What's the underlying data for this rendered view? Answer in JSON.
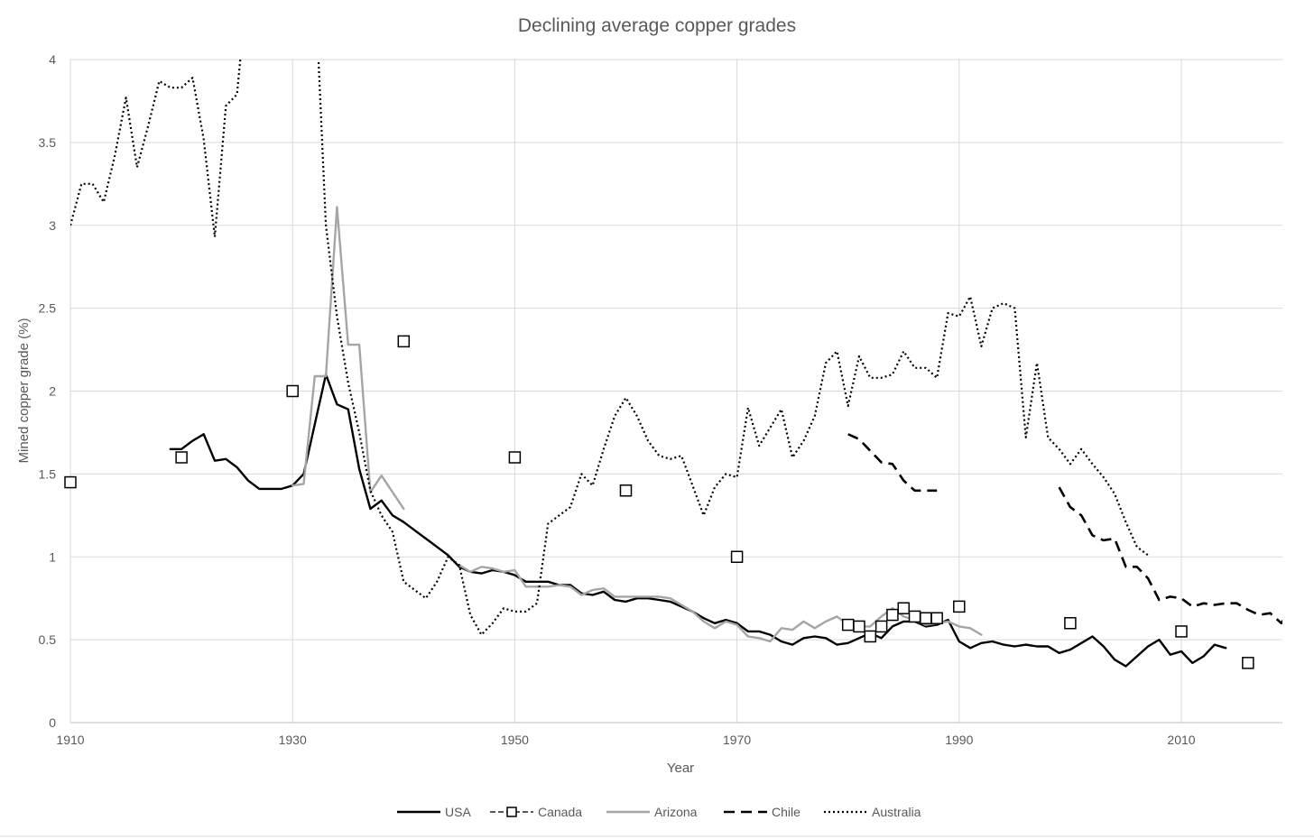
{
  "chart_data": {
    "type": "line",
    "title": "Declining average copper grades",
    "xlabel": "Year",
    "ylabel": "Mined copper grade (%)",
    "xlim": [
      1910,
      2020
    ],
    "ylim": [
      0,
      4
    ],
    "x_ticks": [
      "1910",
      "1930",
      "1950",
      "1970",
      "1990",
      "2010"
    ],
    "y_ticks": [
      "0",
      "0.5",
      "1",
      "1.5",
      "2",
      "2.5",
      "3",
      "3.5",
      "4"
    ],
    "grid": "on",
    "legend_position": "bottom",
    "series": [
      {
        "name": "USA",
        "style": "solid",
        "color": "#000000",
        "points": [
          [
            1919,
            1.65
          ],
          [
            1920,
            1.65
          ],
          [
            1921,
            1.7
          ],
          [
            1922,
            1.74
          ],
          [
            1923,
            1.58
          ],
          [
            1924,
            1.59
          ],
          [
            1925,
            1.54
          ],
          [
            1926,
            1.46
          ],
          [
            1927,
            1.41
          ],
          [
            1928,
            1.41
          ],
          [
            1929,
            1.41
          ],
          [
            1930,
            1.43
          ],
          [
            1931,
            1.5
          ],
          [
            1932,
            1.8
          ],
          [
            1933,
            2.1
          ],
          [
            1934,
            1.92
          ],
          [
            1935,
            1.89
          ],
          [
            1936,
            1.53
          ],
          [
            1937,
            1.29
          ],
          [
            1938,
            1.34
          ],
          [
            1939,
            1.25
          ],
          [
            1940,
            1.21
          ],
          [
            1941,
            1.16
          ],
          [
            1942,
            1.11
          ],
          [
            1943,
            1.06
          ],
          [
            1944,
            1.01
          ],
          [
            1945,
            0.94
          ],
          [
            1946,
            0.91
          ],
          [
            1947,
            0.9
          ],
          [
            1948,
            0.92
          ],
          [
            1949,
            0.91
          ],
          [
            1950,
            0.89
          ],
          [
            1951,
            0.85
          ],
          [
            1952,
            0.85
          ],
          [
            1953,
            0.85
          ],
          [
            1954,
            0.83
          ],
          [
            1955,
            0.83
          ],
          [
            1956,
            0.78
          ],
          [
            1957,
            0.77
          ],
          [
            1958,
            0.79
          ],
          [
            1959,
            0.74
          ],
          [
            1960,
            0.73
          ],
          [
            1961,
            0.75
          ],
          [
            1962,
            0.75
          ],
          [
            1963,
            0.74
          ],
          [
            1964,
            0.73
          ],
          [
            1965,
            0.7
          ],
          [
            1966,
            0.67
          ],
          [
            1967,
            0.63
          ],
          [
            1968,
            0.6
          ],
          [
            1969,
            0.62
          ],
          [
            1970,
            0.6
          ],
          [
            1971,
            0.55
          ],
          [
            1972,
            0.55
          ],
          [
            1973,
            0.53
          ],
          [
            1974,
            0.49
          ],
          [
            1975,
            0.47
          ],
          [
            1976,
            0.51
          ],
          [
            1977,
            0.52
          ],
          [
            1978,
            0.51
          ],
          [
            1979,
            0.47
          ],
          [
            1980,
            0.48
          ],
          [
            1981,
            0.51
          ],
          [
            1982,
            0.54
          ],
          [
            1983,
            0.51
          ],
          [
            1984,
            0.58
          ],
          [
            1985,
            0.61
          ],
          [
            1986,
            0.61
          ],
          [
            1987,
            0.58
          ],
          [
            1988,
            0.59
          ],
          [
            1989,
            0.62
          ],
          [
            1990,
            0.49
          ],
          [
            1991,
            0.45
          ],
          [
            1992,
            0.48
          ],
          [
            1993,
            0.49
          ],
          [
            1994,
            0.47
          ],
          [
            1995,
            0.46
          ],
          [
            1996,
            0.47
          ],
          [
            1997,
            0.46
          ],
          [
            1998,
            0.46
          ],
          [
            1999,
            0.42
          ],
          [
            2000,
            0.44
          ],
          [
            2001,
            0.48
          ],
          [
            2002,
            0.52
          ],
          [
            2003,
            0.46
          ],
          [
            2004,
            0.38
          ],
          [
            2005,
            0.34
          ],
          [
            2006,
            0.4
          ],
          [
            2007,
            0.46
          ],
          [
            2008,
            0.5
          ],
          [
            2009,
            0.41
          ],
          [
            2010,
            0.43
          ],
          [
            2011,
            0.36
          ],
          [
            2012,
            0.4
          ],
          [
            2013,
            0.47
          ],
          [
            2014,
            0.45
          ]
        ]
      },
      {
        "name": "Canada",
        "style": "markers",
        "color": "#000000",
        "points": [
          [
            1910,
            1.45
          ],
          [
            1920,
            1.6
          ],
          [
            1930,
            2.0
          ],
          [
            1940,
            2.3
          ],
          [
            1950,
            1.6
          ],
          [
            1960,
            1.4
          ],
          [
            1970,
            1.0
          ],
          [
            1980,
            0.59
          ],
          [
            1981,
            0.58
          ],
          [
            1982,
            0.52
          ],
          [
            1983,
            0.58
          ],
          [
            1984,
            0.65
          ],
          [
            1985,
            0.69
          ],
          [
            1986,
            0.64
          ],
          [
            1987,
            0.63
          ],
          [
            1988,
            0.63
          ],
          [
            1990,
            0.7
          ],
          [
            2000,
            0.6
          ],
          [
            2010,
            0.55
          ],
          [
            2016,
            0.36
          ]
        ]
      },
      {
        "name": "Arizona",
        "style": "solid",
        "color": "#a5a5a5",
        "points": [
          [
            1930,
            1.43
          ],
          [
            1931,
            1.44
          ],
          [
            1932,
            2.09
          ],
          [
            1933,
            2.09
          ],
          [
            1934,
            3.11
          ],
          [
            1935,
            2.28
          ],
          [
            1936,
            2.28
          ],
          [
            1937,
            1.39
          ],
          [
            1938,
            1.49
          ],
          [
            1939,
            1.39
          ],
          [
            1940,
            1.29
          ],
          [
            1945,
            0.95
          ],
          [
            1946,
            0.91
          ],
          [
            1947,
            0.94
          ],
          [
            1948,
            0.93
          ],
          [
            1949,
            0.91
          ],
          [
            1950,
            0.92
          ],
          [
            1951,
            0.82
          ],
          [
            1952,
            0.82
          ],
          [
            1953,
            0.82
          ],
          [
            1954,
            0.83
          ],
          [
            1955,
            0.82
          ],
          [
            1956,
            0.77
          ],
          [
            1957,
            0.8
          ],
          [
            1958,
            0.81
          ],
          [
            1959,
            0.76
          ],
          [
            1960,
            0.76
          ],
          [
            1961,
            0.76
          ],
          [
            1962,
            0.76
          ],
          [
            1963,
            0.76
          ],
          [
            1964,
            0.75
          ],
          [
            1965,
            0.71
          ],
          [
            1966,
            0.67
          ],
          [
            1967,
            0.61
          ],
          [
            1968,
            0.57
          ],
          [
            1969,
            0.61
          ],
          [
            1970,
            0.59
          ],
          [
            1971,
            0.52
          ],
          [
            1972,
            0.51
          ],
          [
            1973,
            0.49
          ],
          [
            1974,
            0.57
          ],
          [
            1975,
            0.56
          ],
          [
            1976,
            0.61
          ],
          [
            1977,
            0.57
          ],
          [
            1978,
            0.61
          ],
          [
            1979,
            0.64
          ],
          [
            1980,
            0.59
          ],
          [
            1981,
            0.58
          ],
          [
            1982,
            0.58
          ],
          [
            1983,
            0.64
          ],
          [
            1984,
            0.69
          ],
          [
            1985,
            0.64
          ],
          [
            1986,
            0.62
          ],
          [
            1987,
            0.59
          ],
          [
            1988,
            0.6
          ],
          [
            1989,
            0.61
          ],
          [
            1990,
            0.58
          ],
          [
            1991,
            0.57
          ],
          [
            1992,
            0.53
          ]
        ]
      },
      {
        "name": "Chile",
        "style": "dashed",
        "color": "#000000",
        "points": [
          [
            1980,
            1.74
          ],
          [
            1981,
            1.71
          ],
          [
            1982,
            1.64
          ],
          [
            1983,
            1.57
          ],
          [
            1984,
            1.56
          ],
          [
            1985,
            1.46
          ],
          [
            1986,
            1.4
          ],
          [
            1987,
            1.4
          ],
          [
            1988,
            1.4
          ],
          [
            1999,
            1.42
          ],
          [
            2000,
            1.3
          ],
          [
            2001,
            1.25
          ],
          [
            2002,
            1.13
          ],
          [
            2003,
            1.1
          ],
          [
            2004,
            1.11
          ],
          [
            2005,
            0.94
          ],
          [
            2006,
            0.94
          ],
          [
            2007,
            0.87
          ],
          [
            2008,
            0.74
          ],
          [
            2009,
            0.76
          ],
          [
            2010,
            0.75
          ],
          [
            2011,
            0.7
          ],
          [
            2012,
            0.72
          ],
          [
            2013,
            0.71
          ],
          [
            2014,
            0.72
          ],
          [
            2015,
            0.72
          ],
          [
            2016,
            0.68
          ],
          [
            2017,
            0.65
          ],
          [
            2018,
            0.66
          ],
          [
            2019,
            0.6
          ],
          [
            2020,
            0.7
          ]
        ]
      },
      {
        "name": "Australia",
        "style": "dotted",
        "color": "#000000",
        "points": [
          [
            1910,
            3.0
          ],
          [
            1911,
            3.25
          ],
          [
            1912,
            3.25
          ],
          [
            1913,
            3.14
          ],
          [
            1914,
            3.42
          ],
          [
            1915,
            3.77
          ],
          [
            1916,
            3.35
          ],
          [
            1917,
            3.6
          ],
          [
            1918,
            3.87
          ],
          [
            1919,
            3.83
          ],
          [
            1920,
            3.83
          ],
          [
            1921,
            3.89
          ],
          [
            1922,
            3.52
          ],
          [
            1923,
            2.93
          ],
          [
            1924,
            3.72
          ],
          [
            1925,
            3.79
          ],
          [
            1926,
            4.5
          ],
          [
            1932,
            4.5
          ],
          [
            1933,
            3.0
          ],
          [
            1934,
            2.45
          ],
          [
            1935,
            2.05
          ],
          [
            1936,
            1.75
          ],
          [
            1937,
            1.4
          ],
          [
            1938,
            1.25
          ],
          [
            1939,
            1.15
          ],
          [
            1940,
            0.85
          ],
          [
            1941,
            0.8
          ],
          [
            1942,
            0.75
          ],
          [
            1943,
            0.85
          ],
          [
            1944,
            1.0
          ],
          [
            1945,
            0.95
          ],
          [
            1946,
            0.65
          ],
          [
            1947,
            0.53
          ],
          [
            1948,
            0.6
          ],
          [
            1949,
            0.69
          ],
          [
            1950,
            0.67
          ],
          [
            1951,
            0.67
          ],
          [
            1952,
            0.72
          ],
          [
            1953,
            1.2
          ],
          [
            1954,
            1.25
          ],
          [
            1955,
            1.3
          ],
          [
            1956,
            1.5
          ],
          [
            1957,
            1.43
          ],
          [
            1958,
            1.65
          ],
          [
            1959,
            1.85
          ],
          [
            1960,
            1.96
          ],
          [
            1961,
            1.85
          ],
          [
            1962,
            1.7
          ],
          [
            1963,
            1.61
          ],
          [
            1964,
            1.59
          ],
          [
            1965,
            1.61
          ],
          [
            1966,
            1.43
          ],
          [
            1967,
            1.25
          ],
          [
            1968,
            1.42
          ],
          [
            1969,
            1.5
          ],
          [
            1970,
            1.48
          ],
          [
            1971,
            1.9
          ],
          [
            1972,
            1.67
          ],
          [
            1973,
            1.78
          ],
          [
            1974,
            1.89
          ],
          [
            1975,
            1.6
          ],
          [
            1976,
            1.7
          ],
          [
            1977,
            1.85
          ],
          [
            1978,
            2.17
          ],
          [
            1979,
            2.24
          ],
          [
            1980,
            1.91
          ],
          [
            1981,
            2.21
          ],
          [
            1982,
            2.08
          ],
          [
            1983,
            2.08
          ],
          [
            1984,
            2.1
          ],
          [
            1985,
            2.24
          ],
          [
            1986,
            2.14
          ],
          [
            1987,
            2.14
          ],
          [
            1988,
            2.08
          ],
          [
            1989,
            2.47
          ],
          [
            1990,
            2.45
          ],
          [
            1991,
            2.57
          ],
          [
            1992,
            2.27
          ],
          [
            1993,
            2.5
          ],
          [
            1994,
            2.53
          ],
          [
            1995,
            2.5
          ],
          [
            1996,
            1.72
          ],
          [
            1997,
            2.17
          ],
          [
            1998,
            1.72
          ],
          [
            1999,
            1.65
          ],
          [
            2000,
            1.56
          ],
          [
            2001,
            1.65
          ],
          [
            2002,
            1.56
          ],
          [
            2003,
            1.48
          ],
          [
            2004,
            1.38
          ],
          [
            2005,
            1.21
          ],
          [
            2006,
            1.06
          ],
          [
            2007,
            1.01
          ]
        ]
      }
    ]
  }
}
